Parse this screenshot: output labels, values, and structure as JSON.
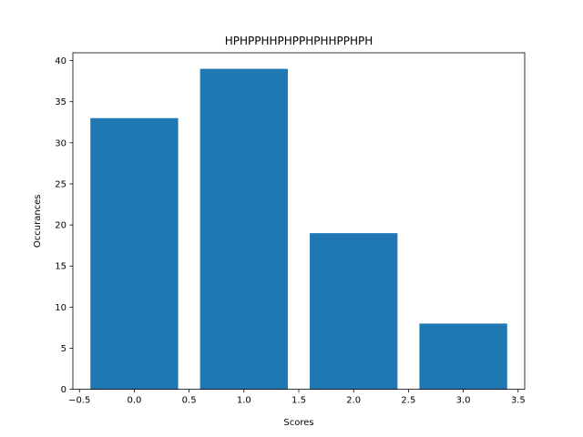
{
  "chart_data": {
    "type": "bar",
    "title": "HPHPPHHPHPPHPHHPPHPH",
    "xlabel": "Scores",
    "ylabel": "Occurances",
    "x": [
      0,
      1,
      2,
      3
    ],
    "values": [
      33,
      39,
      19,
      8
    ],
    "bar_width": 0.8,
    "xlim": [
      -0.56,
      3.56
    ],
    "ylim": [
      0,
      40.95
    ],
    "xticks": [
      -0.5,
      0.0,
      0.5,
      1.0,
      1.5,
      2.0,
      2.5,
      3.0,
      3.5
    ],
    "xtick_labels": [
      "−0.5",
      "0.0",
      "0.5",
      "1.0",
      "1.5",
      "2.0",
      "2.5",
      "3.0",
      "3.5"
    ],
    "yticks": [
      0,
      5,
      10,
      15,
      20,
      25,
      30,
      35,
      40
    ],
    "ytick_labels": [
      "0",
      "5",
      "10",
      "15",
      "20",
      "25",
      "30",
      "35",
      "40"
    ],
    "grid": false,
    "bar_color": "#1f77b4"
  }
}
